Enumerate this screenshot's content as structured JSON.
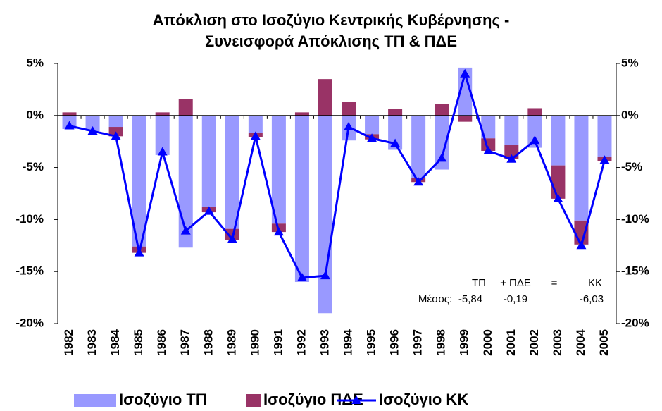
{
  "chart_data": {
    "type": "bar-line",
    "title": [
      "Απόκλιση στο Ισοζύγιο Κεντρικής Κυβέρνησης -",
      "Συνεισφορά Απόκλισης ΤΠ & ΠΔΕ"
    ],
    "categories": [
      "1982",
      "1983",
      "1984",
      "1985",
      "1986",
      "1987",
      "1988",
      "1989",
      "1990",
      "1991",
      "1992",
      "1993",
      "1994",
      "1995",
      "1996",
      "1997",
      "1998",
      "1999",
      "2000",
      "2001",
      "2002",
      "2003",
      "2004",
      "2005"
    ],
    "series": [
      {
        "name": "Ισοζύγιο ΤΠ",
        "type": "bar",
        "color": "#9999ff",
        "values": [
          -1.3,
          -1.5,
          -1.1,
          -12.6,
          -3.8,
          -12.7,
          -8.8,
          -10.9,
          -1.7,
          -10.4,
          -16.0,
          -19.0,
          -2.4,
          -1.8,
          -3.3,
          -6.0,
          -5.2,
          4.6,
          -2.2,
          -2.8,
          -3.1,
          -4.8,
          -10.1,
          -4.0
        ]
      },
      {
        "name": "Ισοζύγιο ΠΔΕ",
        "type": "bar",
        "color": "#993366",
        "values": [
          0.3,
          0.0,
          -0.9,
          -0.6,
          0.3,
          1.6,
          -0.5,
          -1.1,
          -0.4,
          -0.8,
          0.3,
          3.5,
          1.3,
          -0.5,
          0.6,
          -0.4,
          1.1,
          -0.6,
          -1.2,
          -1.4,
          0.7,
          -3.2,
          -2.3,
          -0.4
        ]
      },
      {
        "name": "Ισοζύγιο ΚΚ",
        "type": "line",
        "color": "#0000ff",
        "values": [
          -1.0,
          -1.5,
          -2.0,
          -13.2,
          -3.5,
          -11.1,
          -9.2,
          -11.9,
          -2.0,
          -11.2,
          -15.6,
          -15.4,
          -1.1,
          -2.2,
          -2.7,
          -6.4,
          -4.1,
          4.0,
          -3.4,
          -4.2,
          -2.4,
          -8.0,
          -12.5,
          -4.3
        ]
      }
    ],
    "ylim": [
      -20,
      5
    ],
    "yticks": [
      {
        "value": -20,
        "label": "-20%"
      },
      {
        "value": -15,
        "label": "-15%"
      },
      {
        "value": -10,
        "label": "-10%"
      },
      {
        "value": -5,
        "label": "-5%"
      },
      {
        "value": 0,
        "label": "0%"
      },
      {
        "value": 5,
        "label": "5%"
      }
    ],
    "y2lim": [
      -20,
      5
    ],
    "y2ticks": [
      {
        "value": -20,
        "label": "-20%"
      },
      {
        "value": -15,
        "label": "-15%"
      },
      {
        "value": -10,
        "label": "-10%"
      },
      {
        "value": -5,
        "label": "-5%"
      },
      {
        "value": 0,
        "label": "0%"
      },
      {
        "value": 5,
        "label": "5%"
      }
    ],
    "grid": false,
    "legend": "bottom",
    "annotation": {
      "header": [
        "ΤΠ",
        "+ ΠΔΕ",
        "=",
        "ΚΚ"
      ],
      "label": "Μέσος:",
      "means": [
        "-5,84",
        "-0,19",
        "-6,03"
      ]
    }
  }
}
